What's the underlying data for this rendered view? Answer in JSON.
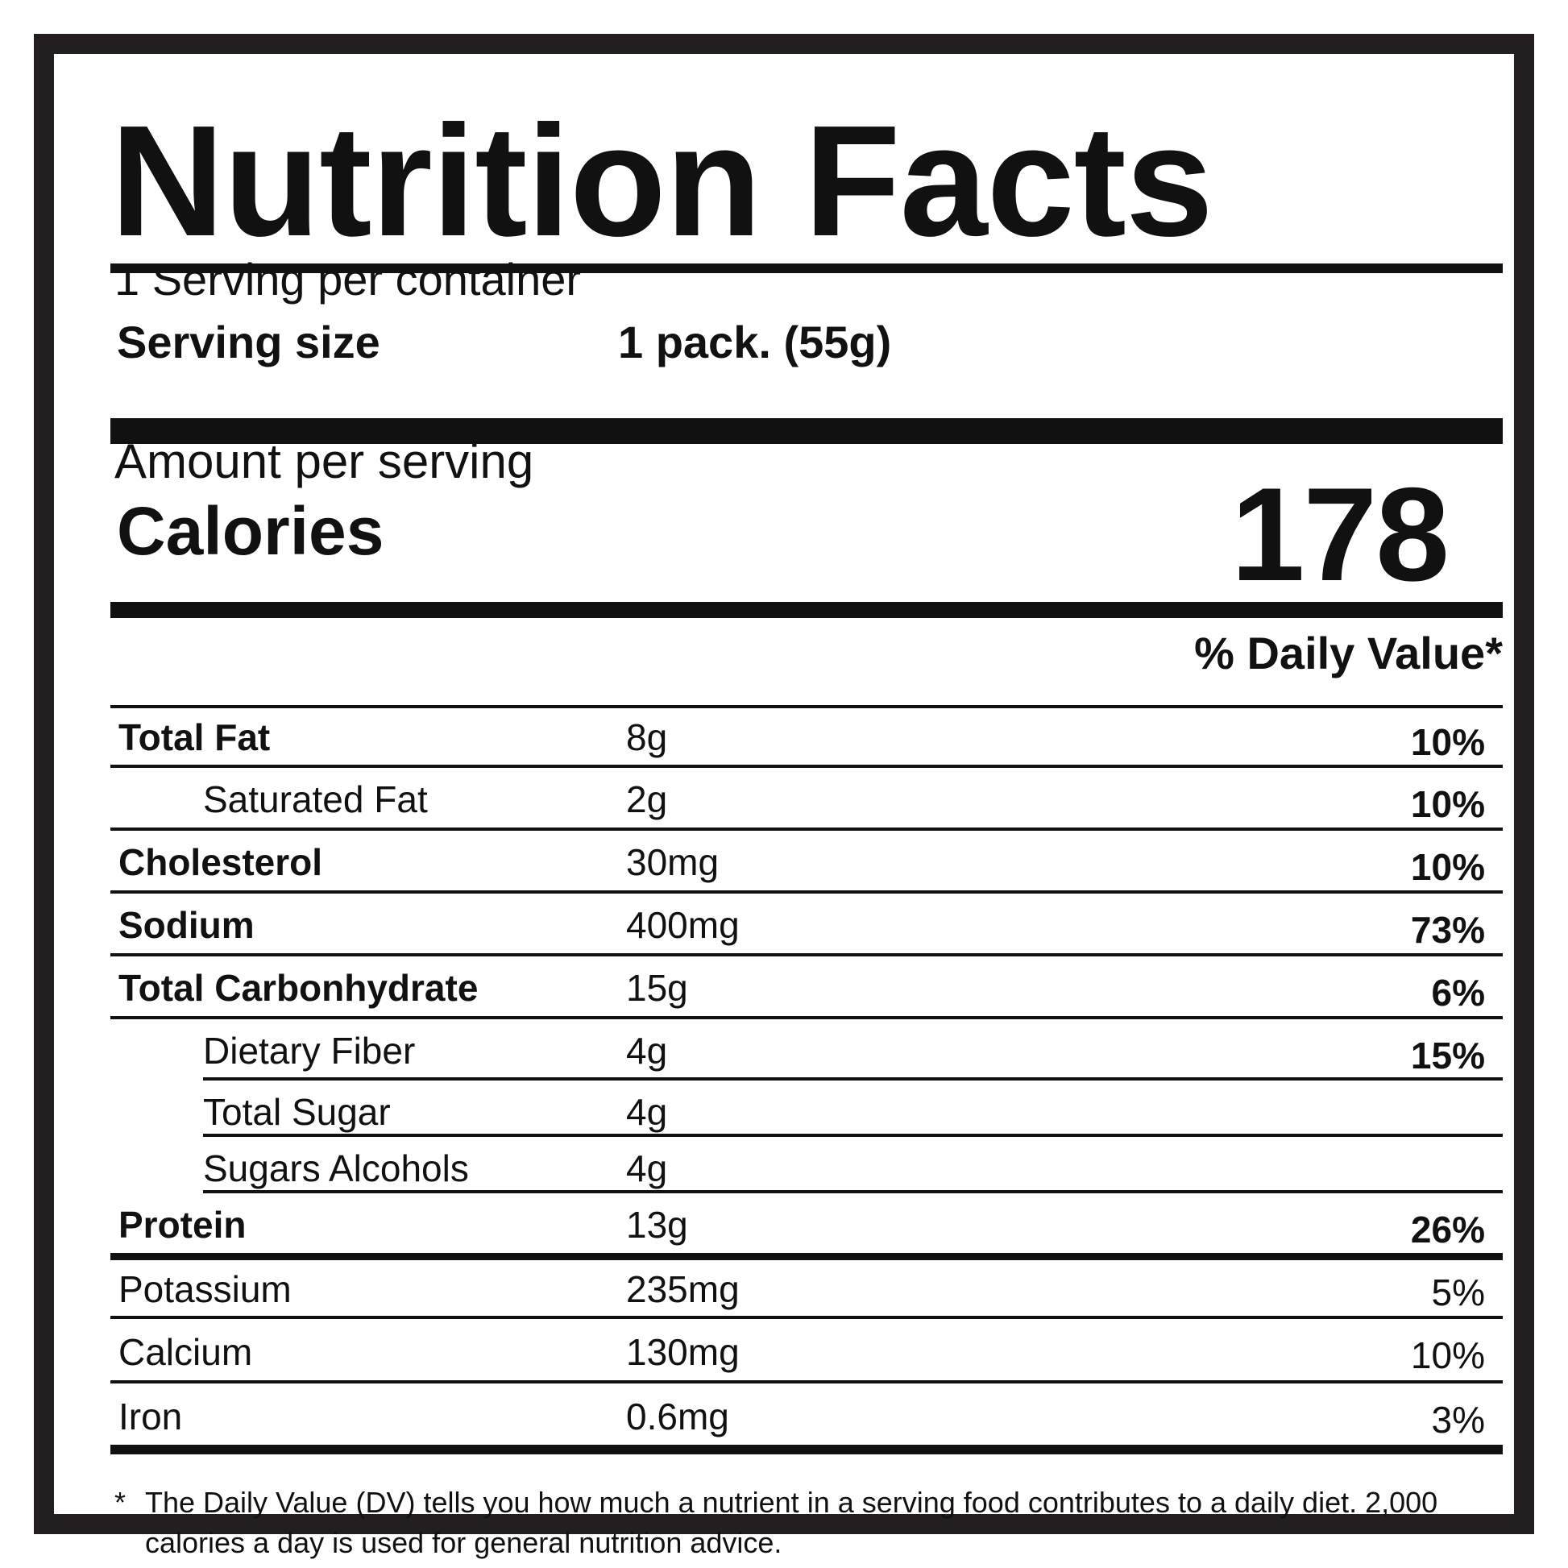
{
  "label": {
    "title": "Nutrition Facts",
    "servings_per_container": "1 Serving per container",
    "serving_size_label": "Serving size",
    "serving_size_value": "1 pack. (55g)",
    "amount_per_serving": "Amount per serving",
    "calories_label": "Calories",
    "calories_value": "178",
    "daily_value_header": "% Daily Value*"
  },
  "nutrients": [
    {
      "name": "Total Fat",
      "amount": "8g",
      "dv": "10%",
      "style": "bold"
    },
    {
      "name": "Saturated Fat",
      "amount": "2g",
      "dv": "10%",
      "style": "indent"
    },
    {
      "name": "Cholesterol",
      "amount": "30mg",
      "dv": "10%",
      "style": "bold"
    },
    {
      "name": "Sodium",
      "amount": "400mg",
      "dv": "73%",
      "style": "bold"
    },
    {
      "name": "Total Carbonhydrate",
      "amount": "15g",
      "dv": "6%",
      "style": "bold"
    },
    {
      "name": "Dietary Fiber",
      "amount": "4g",
      "dv": "15%",
      "style": "indent"
    },
    {
      "name": "Total Sugar",
      "amount": "4g",
      "dv": "",
      "style": "indent"
    },
    {
      "name": "Sugars Alcohols",
      "amount": "4g",
      "dv": "",
      "style": "indent"
    },
    {
      "name": "Protein",
      "amount": "13g",
      "dv": "26%",
      "style": "bold"
    },
    {
      "name": "Potassium",
      "amount": "235mg",
      "dv": "5%",
      "style": "plain"
    },
    {
      "name": "Calcium",
      "amount": "130mg",
      "dv": "10%",
      "style": "plain"
    },
    {
      "name": "Iron",
      "amount": "0.6mg",
      "dv": "3%",
      "style": "plain"
    }
  ],
  "footnote": {
    "marker": "*",
    "text": "The  Daily Value (DV) tells you how much a nutrient in a serving food contributes to a daily diet. 2,000 calories a day is used for general nutrition advice."
  }
}
